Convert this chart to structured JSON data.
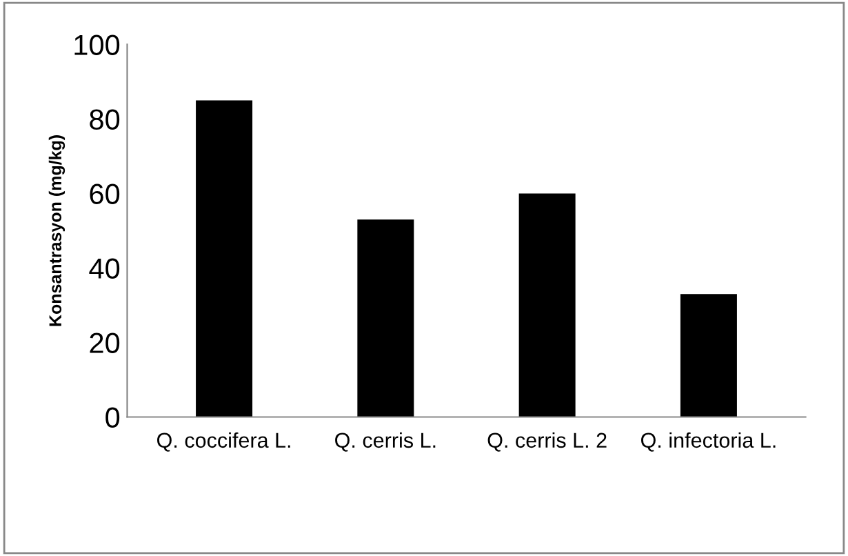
{
  "chart_data": {
    "type": "bar",
    "ylabel": "Konsantrasyon (mg/kg)",
    "categories": [
      "Q. coccifera L.",
      "Q. cerris L.",
      "Q. cerris L. 2",
      "Q. infectoria L."
    ],
    "values": [
      85,
      53,
      60,
      33
    ],
    "color": "#000000",
    "ylim": [
      0,
      100
    ],
    "yticks": [
      0,
      20,
      40,
      60,
      80,
      100
    ],
    "grid": false,
    "legend": false
  }
}
